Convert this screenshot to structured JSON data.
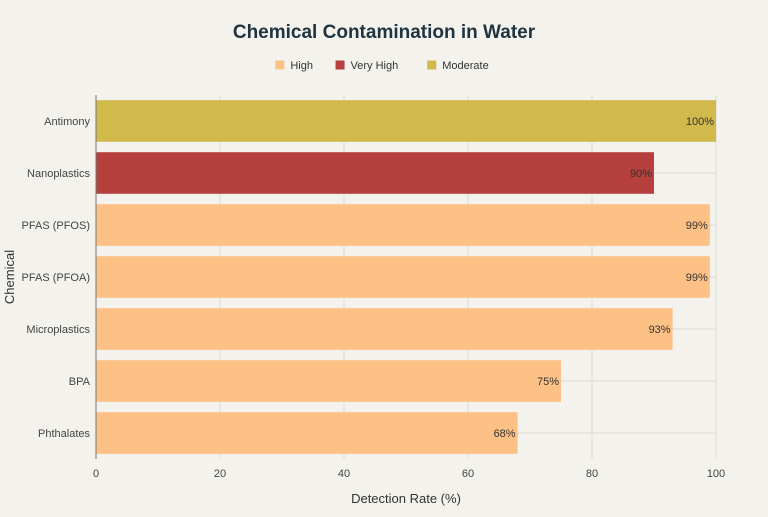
{
  "chart_data": {
    "type": "bar",
    "orientation": "horizontal",
    "title": "Chemical Contamination in Water",
    "xlabel": "Detection Rate (%)",
    "ylabel": "Chemical",
    "xlim": [
      0,
      100
    ],
    "xticks": [
      0,
      20,
      40,
      60,
      80,
      100
    ],
    "grid": true,
    "legend_position": "top-center",
    "legend": [
      {
        "label": "High",
        "color": "#fdc185"
      },
      {
        "label": "Very High",
        "color": "#b5403e"
      },
      {
        "label": "Moderate",
        "color": "#d2b94b"
      }
    ],
    "categories": [
      "Antimony",
      "Nanoplastics",
      "PFAS (PFOS)",
      "PFAS (PFOA)",
      "Microplastics",
      "BPA",
      "Phthalates"
    ],
    "values": [
      100,
      90,
      99,
      99,
      93,
      75,
      68
    ],
    "value_labels": [
      "100%",
      "90%",
      "99%",
      "99%",
      "93%",
      "75%",
      "68%"
    ],
    "risk_levels": [
      "Moderate",
      "Very High",
      "High",
      "High",
      "High",
      "High",
      "High"
    ],
    "colors": [
      "#d2b94b",
      "#b5403e",
      "#fdc185",
      "#fdc185",
      "#fdc185",
      "#fdc185",
      "#fdc185"
    ]
  }
}
